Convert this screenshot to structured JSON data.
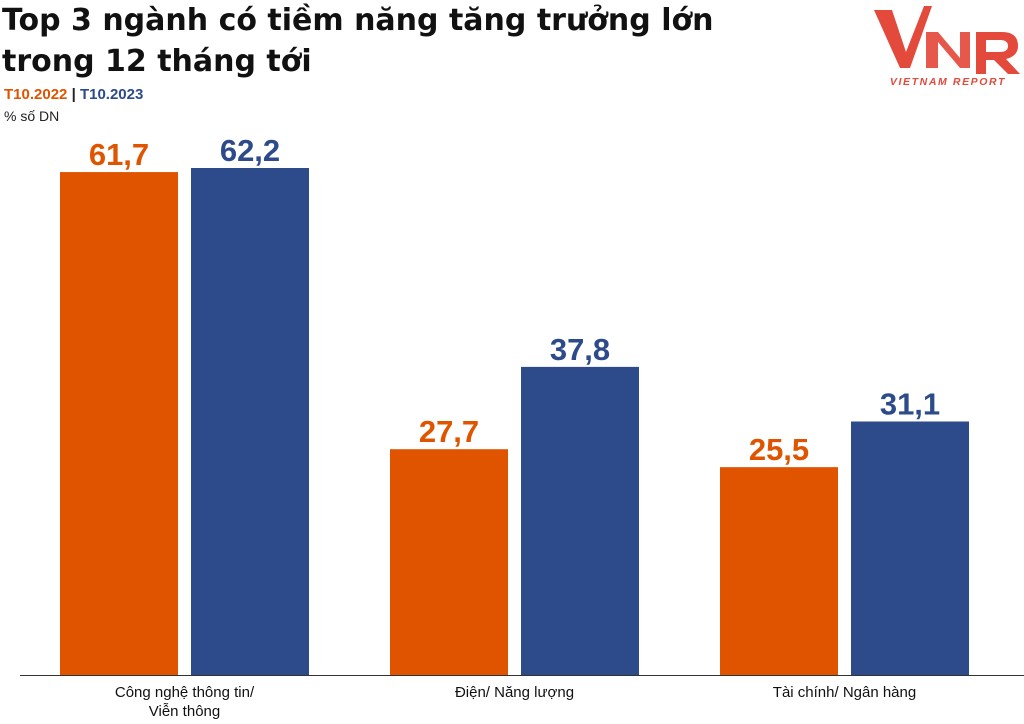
{
  "header": {
    "title_line1": "Top 3 ngành có tiềm năng tăng trưởng lớn",
    "title_line2": "trong 12 tháng tới",
    "legend_series1": "T10.2022",
    "legend_separator": "|",
    "legend_series2": "T10.2023",
    "unit": "% số DN"
  },
  "logo": {
    "text": "VNR",
    "tagline": "VIETNAM REPORT"
  },
  "colors": {
    "series1": "#e05400",
    "series2": "#2d4b8b",
    "logo_red": "#e34a3c"
  },
  "chart_data": {
    "type": "bar",
    "title": "Top 3 ngành có tiềm năng tăng trưởng lớn trong 12 tháng tới",
    "ylabel": "% số DN",
    "xlabel": "",
    "categories": [
      [
        "Công nghệ thông tin/",
        "Viễn thông"
      ],
      [
        "Điện/ Năng lượng"
      ],
      [
        "Tài chính/ Ngân hàng"
      ]
    ],
    "series": [
      {
        "name": "T10.2022",
        "values": [
          61.7,
          27.7,
          25.5
        ],
        "labels": [
          "61,7",
          "27,7",
          "25,5"
        ],
        "color": "#e05400"
      },
      {
        "name": "T10.2023",
        "values": [
          62.2,
          37.8,
          31.1
        ],
        "labels": [
          "62,2",
          "37,8",
          "31,1"
        ],
        "color": "#2d4b8b"
      }
    ],
    "ylim": [
      0,
      62.2
    ],
    "grid": false,
    "legend": "top-left"
  }
}
